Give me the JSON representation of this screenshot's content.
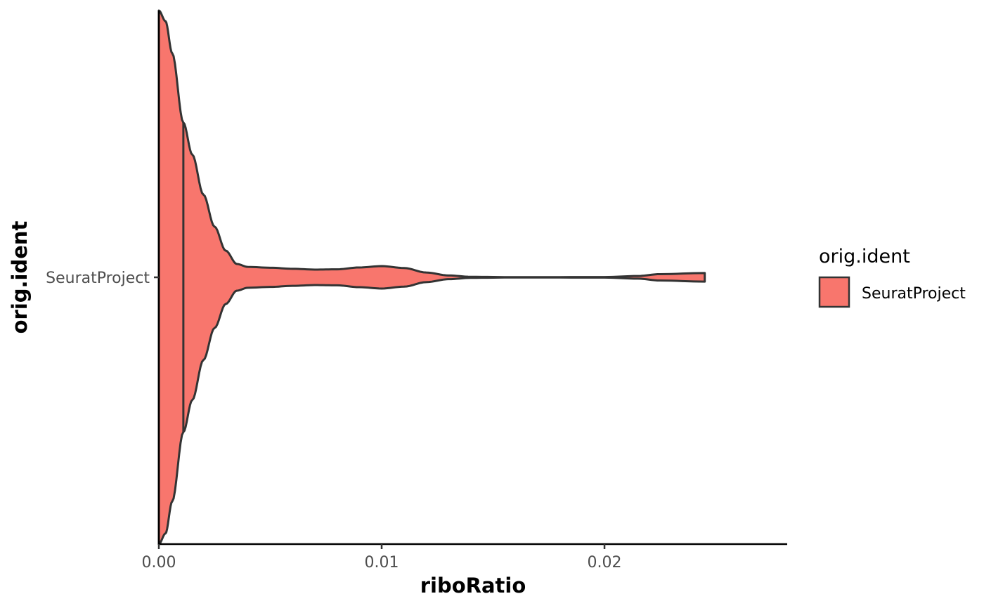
{
  "chart_data": {
    "type": "violin",
    "title": "",
    "xlabel": "riboRatio",
    "ylabel": "orig.ident",
    "xlim": [
      0.0,
      0.0282
    ],
    "x_ticks": [
      {
        "value": 0.0,
        "label": "0.00"
      },
      {
        "value": 0.01,
        "label": "0.01"
      },
      {
        "value": 0.02,
        "label": "0.02"
      }
    ],
    "categories": [
      "SeuratProject"
    ],
    "series": [
      {
        "name": "SeuratProject",
        "color": "#F8766D",
        "outline_color": "#333333",
        "median": 0.0011,
        "density_profile": {
          "x": [
            0.0,
            0.0003,
            0.0006,
            0.0011,
            0.0015,
            0.002,
            0.0025,
            0.003,
            0.0035,
            0.004,
            0.005,
            0.006,
            0.007,
            0.008,
            0.009,
            0.01,
            0.011,
            0.012,
            0.013,
            0.014,
            0.016,
            0.02,
            0.0215,
            0.0225,
            0.0245
          ],
          "half_width": [
            1.0,
            0.96,
            0.84,
            0.58,
            0.46,
            0.31,
            0.19,
            0.1,
            0.05,
            0.039,
            0.036,
            0.032,
            0.029,
            0.03,
            0.037,
            0.042,
            0.035,
            0.018,
            0.007,
            0.002,
            0.0005,
            0.001,
            0.005,
            0.012,
            0.016
          ]
        }
      }
    ],
    "legend": {
      "title": "orig.ident",
      "position": "right",
      "entries": [
        {
          "label": "SeuratProject",
          "color": "#F8766D"
        }
      ]
    },
    "grid": false
  }
}
